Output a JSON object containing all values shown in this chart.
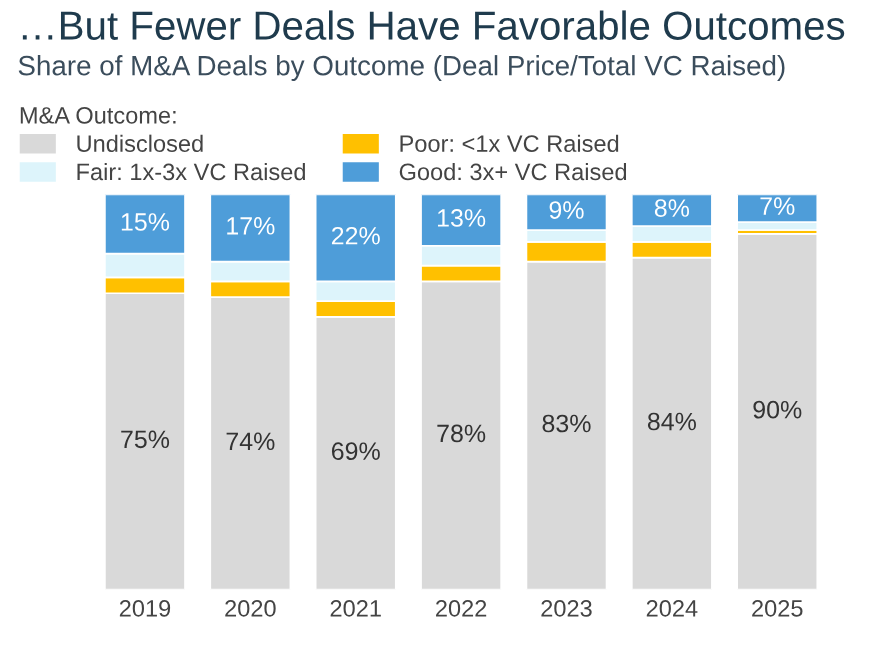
{
  "chart_data": {
    "type": "bar",
    "stacked": true,
    "title": "…But Fewer Deals Have Favorable Outcomes",
    "subtitle": "Share of M&A Deals by Outcome (Deal Price/Total VC Raised)",
    "legend_title": "M&A Outcome:",
    "legend": "top left",
    "categories": [
      "2019",
      "2020",
      "2021",
      "2022",
      "2023",
      "2024",
      "2025"
    ],
    "ylim": [
      0,
      100
    ],
    "tick_labels": "x",
    "grid": false,
    "series": [
      {
        "name": "Undisclosed",
        "color": "#d9d9d9",
        "values": [
          75,
          74,
          69,
          78,
          83,
          84,
          90
        ],
        "value_labels": [
          "75%",
          "74%",
          "69%",
          "78%",
          "83%",
          "84%",
          "90%"
        ]
      },
      {
        "name": "Poor: <1x VC Raised",
        "color": "#ffc000",
        "values": [
          4,
          4,
          4,
          4,
          5,
          4,
          1
        ]
      },
      {
        "name": "Fair: 1x-3x VC Raised",
        "color": "#ddf4fb",
        "values": [
          6,
          5,
          5,
          5,
          3,
          4,
          2
        ]
      },
      {
        "name": "Good: 3x+ VC Raised",
        "color": "#4e9dd9",
        "values": [
          15,
          17,
          22,
          13,
          9,
          8,
          7
        ],
        "value_labels": [
          "15%",
          "17%",
          "22%",
          "13%",
          "9%",
          "8%",
          "7%"
        ]
      }
    ]
  }
}
